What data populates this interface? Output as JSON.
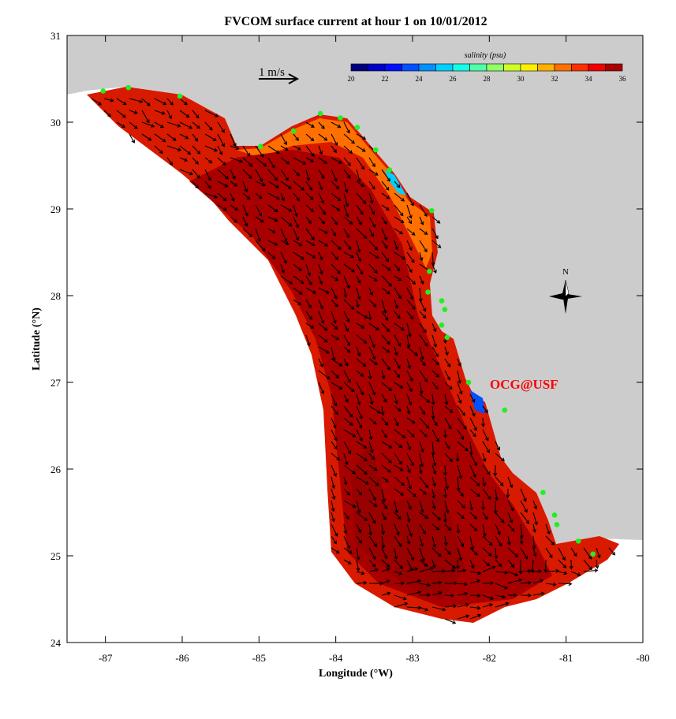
{
  "title": "FVCOM surface current at hour 1 on 10/01/2012",
  "xlabel": "Longitude (°W)",
  "ylabel": "Latitude (°N)",
  "xlim": [
    -87.5,
    -80
  ],
  "ylim": [
    24,
    31
  ],
  "x_ticks": [
    "-87",
    "-86",
    "-85",
    "-84",
    "-83",
    "-82",
    "-81",
    "-80"
  ],
  "y_ticks": [
    "24",
    "25",
    "26",
    "27",
    "28",
    "29",
    "30",
    "31"
  ],
  "scale_arrow_label": "1 m/s",
  "north_label": "N",
  "credit": "OCG@USF",
  "colorbar": {
    "title": "salinity (psu)",
    "range": [
      20,
      36
    ],
    "tick_labels": [
      "20",
      "22",
      "24",
      "26",
      "28",
      "30",
      "32",
      "34",
      "36"
    ],
    "colors": [
      "#00007f",
      "#0000c8",
      "#0010ff",
      "#0050ff",
      "#0090ff",
      "#00d0ff",
      "#14ffe8",
      "#50ffa8",
      "#90ff68",
      "#d0ff28",
      "#fff000",
      "#ffb000",
      "#ff7000",
      "#ff3000",
      "#f00000",
      "#a80000"
    ]
  },
  "colors": {
    "land": "#cccccc",
    "ocean_high_salinity": "#c80000",
    "ocean_max": "#a00000",
    "station": "#22ee22",
    "credit": "#ff0000"
  },
  "stations": [
    [
      -87.03,
      30.36
    ],
    [
      -86.7,
      30.4
    ],
    [
      -86.03,
      30.3
    ],
    [
      -84.98,
      29.72
    ],
    [
      -84.55,
      29.9
    ],
    [
      -84.2,
      30.1
    ],
    [
      -83.94,
      30.05
    ],
    [
      -83.72,
      29.94
    ],
    [
      -83.48,
      29.68
    ],
    [
      -83.3,
      29.45
    ],
    [
      -82.75,
      28.98
    ],
    [
      -82.78,
      28.28
    ],
    [
      -82.8,
      28.04
    ],
    [
      -82.62,
      27.94
    ],
    [
      -82.58,
      27.84
    ],
    [
      -82.62,
      27.66
    ],
    [
      -82.55,
      27.52
    ],
    [
      -82.27,
      27.0
    ],
    [
      -81.8,
      26.68
    ],
    [
      -81.3,
      25.73
    ],
    [
      -81.15,
      25.47
    ],
    [
      -81.12,
      25.36
    ],
    [
      -80.84,
      25.17
    ],
    [
      -80.65,
      25.02
    ]
  ]
}
